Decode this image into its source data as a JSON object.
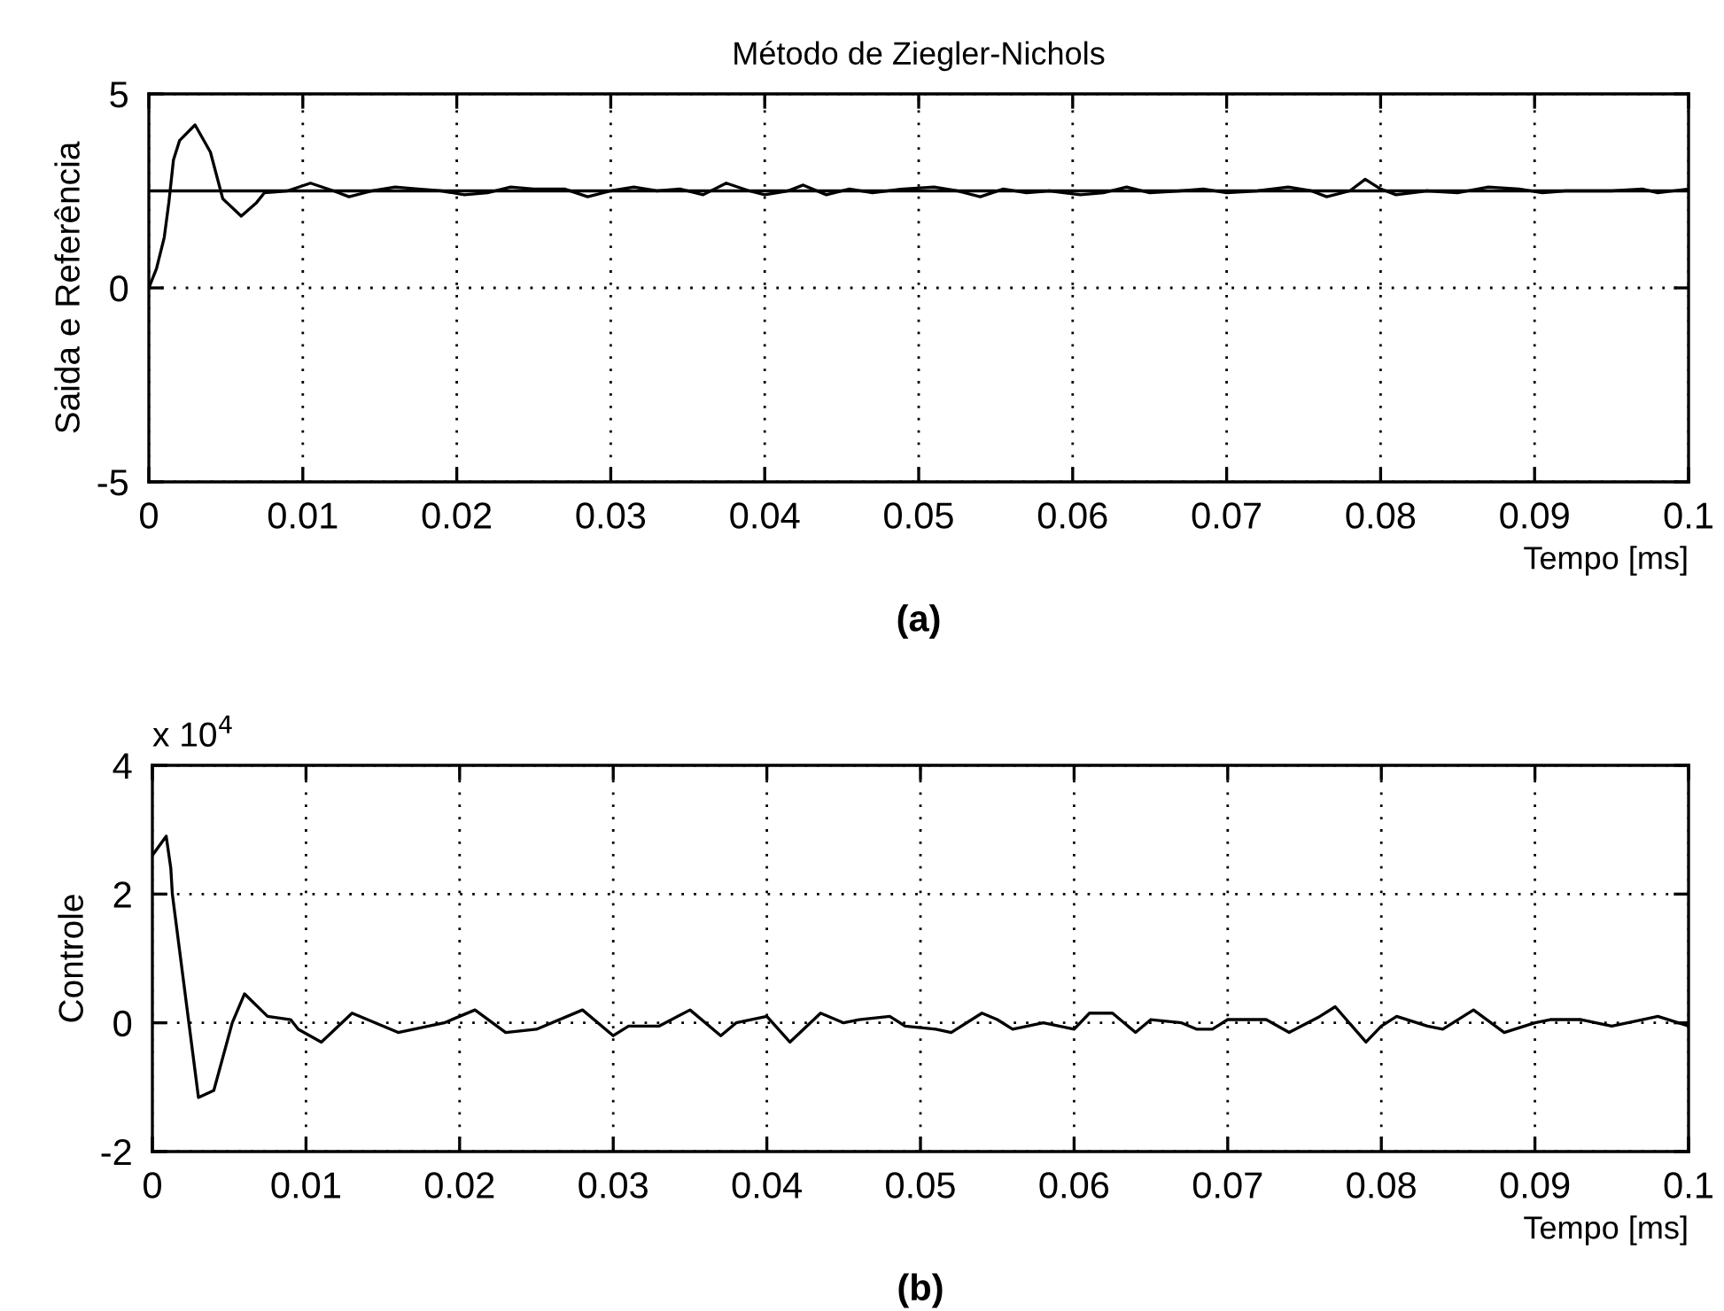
{
  "chart_data": [
    {
      "type": "line",
      "title": "Método de Ziegler-Nichols",
      "ylabel": "Saida e Referência",
      "xlabel": "Tempo [ms]",
      "annotations": [
        "(a)"
      ],
      "xlim": [
        0,
        0.1
      ],
      "xticks": [
        0,
        0.01,
        0.02,
        0.03,
        0.04,
        0.05,
        0.06,
        0.07,
        0.08,
        0.09,
        0.1
      ],
      "ylim": [
        -5,
        5
      ],
      "yticks": [
        -5,
        0,
        5
      ],
      "grid": true,
      "legend": false,
      "line_style": "solid",
      "marker": "none",
      "ref_lines": [
        {
          "axis": "y",
          "value": 2.5,
          "color": "#000000",
          "line_style": "solid"
        }
      ],
      "series": [
        {
          "color": "#000000",
          "x": [
            0,
            0.0005,
            0.001,
            0.0013,
            0.0016,
            0.002,
            0.003,
            0.004,
            0.0048,
            0.006,
            0.007,
            0.0075,
            0.009,
            0.0105,
            0.012,
            0.013,
            0.0145,
            0.016,
            0.0175,
            0.019,
            0.0205,
            0.022,
            0.0235,
            0.025,
            0.027,
            0.0285,
            0.03,
            0.0315,
            0.033,
            0.0345,
            0.036,
            0.0375,
            0.039,
            0.04,
            0.0415,
            0.0425,
            0.044,
            0.0455,
            0.047,
            0.049,
            0.051,
            0.0525,
            0.054,
            0.0555,
            0.057,
            0.0585,
            0.0605,
            0.062,
            0.0635,
            0.065,
            0.067,
            0.0685,
            0.07,
            0.072,
            0.074,
            0.0755,
            0.0765,
            0.078,
            0.079,
            0.08,
            0.081,
            0.083,
            0.085,
            0.087,
            0.089,
            0.0905,
            0.092,
            0.095,
            0.097,
            0.098,
            0.1
          ],
          "values": [
            0,
            0.5,
            1.3,
            2.2,
            3.3,
            3.8,
            4.2,
            3.5,
            2.3,
            1.85,
            2.2,
            2.45,
            2.5,
            2.7,
            2.5,
            2.35,
            2.5,
            2.6,
            2.55,
            2.5,
            2.4,
            2.45,
            2.6,
            2.55,
            2.55,
            2.35,
            2.5,
            2.6,
            2.5,
            2.55,
            2.4,
            2.7,
            2.5,
            2.4,
            2.5,
            2.65,
            2.4,
            2.55,
            2.45,
            2.55,
            2.6,
            2.5,
            2.35,
            2.55,
            2.45,
            2.5,
            2.4,
            2.45,
            2.6,
            2.45,
            2.5,
            2.55,
            2.45,
            2.5,
            2.6,
            2.5,
            2.35,
            2.5,
            2.8,
            2.55,
            2.4,
            2.5,
            2.45,
            2.6,
            2.55,
            2.45,
            2.5,
            2.5,
            2.55,
            2.45,
            2.55
          ]
        }
      ]
    },
    {
      "type": "line",
      "ylabel": "Controle",
      "xlabel": "Tempo [ms]",
      "annotations": [
        "x 10$^{4}$",
        "(b)"
      ],
      "xlim": [
        0,
        0.1
      ],
      "xticks": [
        0,
        0.01,
        0.02,
        0.03,
        0.04,
        0.05,
        0.06,
        0.07,
        0.08,
        0.09,
        0.1
      ],
      "ylim": [
        -2,
        4
      ],
      "yticks": [
        -2,
        0,
        2,
        4
      ],
      "grid": true,
      "legend": false,
      "line_style": "solid",
      "marker": "none",
      "series": [
        {
          "color": "#000000",
          "x": [
            0,
            0.0009,
            0.0012,
            0.0013,
            0.003,
            0.004,
            0.0052,
            0.006,
            0.0075,
            0.009,
            0.0095,
            0.011,
            0.013,
            0.016,
            0.019,
            0.021,
            0.023,
            0.025,
            0.028,
            0.03,
            0.031,
            0.033,
            0.035,
            0.037,
            0.038,
            0.04,
            0.0415,
            0.0435,
            0.045,
            0.046,
            0.048,
            0.049,
            0.051,
            0.052,
            0.054,
            0.055,
            0.056,
            0.058,
            0.06,
            0.061,
            0.0625,
            0.064,
            0.065,
            0.067,
            0.068,
            0.069,
            0.07,
            0.0725,
            0.074,
            0.076,
            0.077,
            0.079,
            0.08,
            0.081,
            0.083,
            0.084,
            0.086,
            0.088,
            0.09,
            0.091,
            0.093,
            0.095,
            0.097,
            0.098,
            0.1
          ],
          "values": [
            2.6,
            2.9,
            2.4,
            2.0,
            -1.16,
            -1.05,
            0,
            0.45,
            0.1,
            0.05,
            -0.1,
            -0.3,
            0.15,
            -0.15,
            0,
            0.2,
            -0.15,
            -0.1,
            0.2,
            -0.2,
            -0.05,
            -0.05,
            0.2,
            -0.2,
            0,
            0.1,
            -0.3,
            0.15,
            0,
            0.05,
            0.1,
            -0.05,
            -0.1,
            -0.15,
            0.15,
            0.05,
            -0.1,
            0,
            -0.1,
            0.15,
            0.15,
            -0.15,
            0.05,
            0,
            -0.1,
            -0.1,
            0.05,
            0.05,
            -0.15,
            0.1,
            0.25,
            -0.3,
            -0.05,
            0.1,
            -0.05,
            -0.1,
            0.2,
            -0.15,
            0,
            0.05,
            0.05,
            -0.05,
            0.05,
            0.1,
            -0.05
          ]
        }
      ]
    }
  ]
}
